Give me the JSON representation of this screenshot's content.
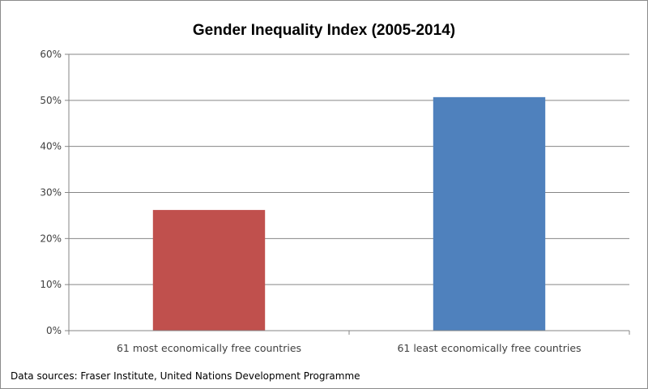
{
  "chart_data": {
    "type": "bar",
    "title": "Gender Inequality Index (2005-2014)",
    "categories": [
      "61 most economically free countries",
      "61 least economically free countries"
    ],
    "values": [
      26.2,
      50.7
    ],
    "colors": [
      "#c0504d",
      "#4f81bd"
    ],
    "ylim": [
      0,
      60
    ],
    "yticks": [
      0,
      10,
      20,
      30,
      40,
      50,
      60
    ],
    "ytick_labels": [
      "0%",
      "10%",
      "20%",
      "30%",
      "40%",
      "50%",
      "60%"
    ],
    "grid": true,
    "legend": "none"
  },
  "footnote": "Data sources: Fraser Institute, United Nations Development Programme"
}
